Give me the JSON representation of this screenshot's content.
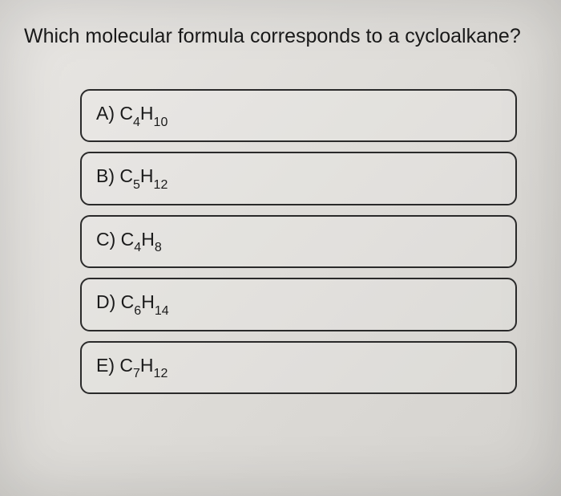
{
  "question": {
    "text": "Which molecular formula corresponds to a cycloalkane?",
    "fontsize": 25,
    "color": "#1a1a1a"
  },
  "options": [
    {
      "letter": "A)",
      "prefix": "C",
      "sub1": "4",
      "mid": "H",
      "sub2": "10"
    },
    {
      "letter": "B)",
      "prefix": "C",
      "sub1": "5",
      "mid": "H",
      "sub2": "12"
    },
    {
      "letter": "C)",
      "prefix": "C",
      "sub1": "4",
      "mid": "H",
      "sub2": "8"
    },
    {
      "letter": "D)",
      "prefix": "C",
      "sub1": "6",
      "mid": "H",
      "sub2": "14"
    },
    {
      "letter": "E)",
      "prefix": "C",
      "sub1": "7",
      "mid": "H",
      "sub2": "12"
    }
  ],
  "styling": {
    "background_gradient": [
      "#e8e6e3",
      "#dedcd8",
      "#d4d2ce"
    ],
    "option_border_color": "#2a2a2a",
    "option_border_radius": 12,
    "option_fontsize": 23,
    "sub_fontsize": 16,
    "option_spacing": 12,
    "options_left_margin": 70
  }
}
